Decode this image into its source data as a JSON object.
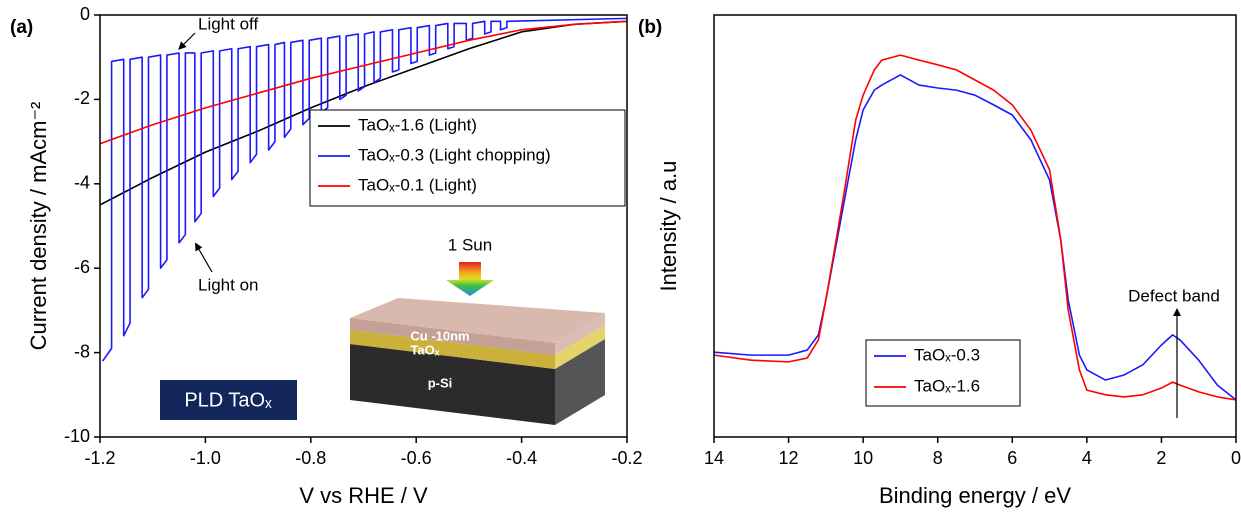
{
  "chart_data": [
    {
      "type": "line",
      "x_label": "V vs RHE / V",
      "y_label": "Current density / mAcm⁻²",
      "xlim": [
        -1.2,
        -0.2
      ],
      "ylim": [
        -10,
        0
      ],
      "xticks": [
        -1.2,
        {
          "value": -1,
          "label": "-1.0"
        },
        -0.8,
        -0.6,
        -0.4,
        -0.2
      ],
      "yticks": [
        0,
        -2,
        -4,
        -6,
        -8,
        -10
      ],
      "annotations": {
        "panel": "(a)",
        "light_off": "Light off",
        "light_on": "Light on",
        "sun": "1 Sun",
        "layer_top": "Cu -10nm",
        "layer_mid": "TaOₓ",
        "layer_bottom": "p-Si",
        "label_box": "PLD TaOₓ"
      },
      "series": [
        {
          "name": "TaOₓ-1.6 (Light)",
          "color": "#000000",
          "x": [
            -1.2,
            -1.1,
            -1.0,
            -0.9,
            -0.8,
            -0.7,
            -0.6,
            -0.5,
            -0.4,
            -0.3,
            -0.2
          ],
          "values": [
            -4.5,
            -3.85,
            -3.25,
            -2.75,
            -2.2,
            -1.7,
            -1.25,
            -0.8,
            -0.4,
            -0.22,
            -0.15
          ]
        },
        {
          "name": "TaOₓ-0.3 (Light chopping)",
          "color": "#1a1aff",
          "x": [
            -1.195,
            -1.178,
            -1.178,
            -1.155,
            -1.155,
            -1.143,
            -1.143,
            -1.12,
            -1.12,
            -1.108,
            -1.108,
            -1.085,
            -1.085,
            -1.073,
            -1.073,
            -1.05,
            -1.05,
            -1.038,
            -1.038,
            -1.02,
            -1.02,
            -1.008,
            -1.008,
            -0.985,
            -0.985,
            -0.973,
            -0.973,
            -0.95,
            -0.95,
            -0.938,
            -0.938,
            -0.915,
            -0.915,
            -0.903,
            -0.903,
            -0.88,
            -0.88,
            -0.868,
            -0.868,
            -0.85,
            -0.85,
            -0.838,
            -0.838,
            -0.815,
            -0.815,
            -0.803,
            -0.803,
            -0.78,
            -0.78,
            -0.768,
            -0.768,
            -0.745,
            -0.745,
            -0.733,
            -0.733,
            -0.71,
            -0.71,
            -0.698,
            -0.698,
            -0.68,
            -0.68,
            -0.668,
            -0.668,
            -0.645,
            -0.645,
            -0.633,
            -0.633,
            -0.61,
            -0.61,
            -0.598,
            -0.598,
            -0.575,
            -0.575,
            -0.563,
            -0.563,
            -0.54,
            -0.54,
            -0.528,
            -0.528,
            -0.505,
            -0.505,
            -0.493,
            -0.493,
            -0.47,
            -0.47,
            -0.458,
            -0.458,
            -0.44,
            -0.44,
            -0.428,
            -0.428,
            -0.2
          ],
          "values": [
            -8.2,
            -7.9,
            -1.1,
            -1.05,
            -7.6,
            -7.3,
            -1.05,
            -1.0,
            -6.7,
            -6.5,
            -1.0,
            -0.95,
            -6.0,
            -5.8,
            -0.95,
            -0.9,
            -5.4,
            -5.2,
            -0.9,
            -0.9,
            -4.9,
            -4.7,
            -0.9,
            -0.85,
            -4.3,
            -4.1,
            -0.85,
            -0.8,
            -3.9,
            -3.7,
            -0.8,
            -0.75,
            -3.5,
            -3.3,
            -0.75,
            -0.7,
            -3.2,
            -3.0,
            -0.7,
            -0.65,
            -2.9,
            -2.7,
            -0.65,
            -0.6,
            -2.6,
            -2.45,
            -0.6,
            -0.55,
            -2.3,
            -2.2,
            -0.55,
            -0.5,
            -2.0,
            -1.9,
            -0.5,
            -0.45,
            -1.8,
            -1.7,
            -0.45,
            -0.4,
            -1.6,
            -1.5,
            -0.4,
            -0.35,
            -1.35,
            -1.3,
            -0.35,
            -0.3,
            -1.15,
            -1.1,
            -0.3,
            -0.25,
            -0.95,
            -0.9,
            -0.25,
            -0.2,
            -0.8,
            -0.75,
            -0.2,
            -0.2,
            -0.6,
            -0.55,
            -0.2,
            -0.15,
            -0.45,
            -0.4,
            -0.15,
            -0.15,
            -0.35,
            -0.3,
            -0.15,
            -0.08
          ]
        },
        {
          "name": "TaOₓ-0.1 (Light)",
          "color": "#ff0000",
          "x": [
            -1.2,
            -1.1,
            -1.0,
            -0.9,
            -0.8,
            -0.7,
            -0.6,
            -0.5,
            -0.4,
            -0.3,
            -0.2
          ],
          "values": [
            -3.05,
            -2.6,
            -2.2,
            -1.85,
            -1.5,
            -1.2,
            -0.9,
            -0.6,
            -0.35,
            -0.22,
            -0.15
          ]
        }
      ]
    },
    {
      "type": "line",
      "x_label": "Binding energy / eV",
      "y_label": "Intensity / a.u",
      "xlim": [
        14,
        0
      ],
      "ylim": [
        0,
        100
      ],
      "xticks": [
        14,
        12,
        10,
        8,
        6,
        4,
        2,
        0
      ],
      "annotations": {
        "panel": "(b)",
        "defect": "Defect band"
      },
      "series": [
        {
          "name": "TaOₓ-0.3",
          "color": "#1a1aff",
          "x": [
            14,
            13,
            12,
            11.5,
            11.2,
            11,
            10.7,
            10.5,
            10.2,
            10,
            9.7,
            9.5,
            9,
            8.5,
            8,
            7.5,
            7,
            6.5,
            6,
            5.5,
            5,
            4.7,
            4.5,
            4.2,
            4,
            3.5,
            3,
            2.5,
            2,
            1.7,
            1.5,
            1,
            0.5,
            0
          ],
          "values": [
            20.1,
            19.4,
            19.4,
            20.6,
            24.2,
            32.5,
            46.7,
            56.2,
            70.4,
            77.5,
            82.2,
            83.4,
            85.8,
            83.4,
            82.7,
            82.2,
            81.0,
            78.7,
            76.3,
            70.4,
            60.9,
            46.7,
            32.5,
            19.4,
            15.9,
            13.5,
            14.7,
            17.1,
            21.8,
            24.2,
            23.0,
            18.2,
            12.3,
            8.8
          ]
        },
        {
          "name": "TaOₓ-1.6",
          "color": "#ff0000",
          "x": [
            14,
            13,
            12,
            11.5,
            11.2,
            11,
            10.7,
            10.5,
            10.2,
            10,
            9.7,
            9.5,
            9,
            8.5,
            8,
            7.5,
            7,
            6.5,
            6,
            5.5,
            5,
            4.7,
            4.5,
            4.2,
            4,
            3.5,
            3,
            2.5,
            2,
            1.7,
            1.5,
            1,
            0.5,
            0
          ],
          "values": [
            19.4,
            18.2,
            17.8,
            18.7,
            23.0,
            32.5,
            47.9,
            58.5,
            75.1,
            81.0,
            87.0,
            89.3,
            90.5,
            89.3,
            88.2,
            87.0,
            84.6,
            82.2,
            78.7,
            72.7,
            63.3,
            46.7,
            30.1,
            15.9,
            11.1,
            10.0,
            9.5,
            10.0,
            11.6,
            13.0,
            12.3,
            10.7,
            9.5,
            8.8
          ]
        }
      ]
    }
  ]
}
